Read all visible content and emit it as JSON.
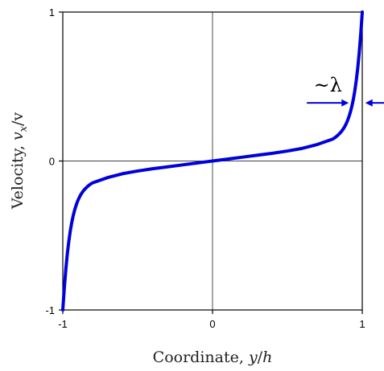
{
  "chart_data": {
    "type": "line",
    "xlabel": "Coordinate, y/h",
    "ylabel": "Velocity, vx/v",
    "xlim": [
      -1,
      1
    ],
    "ylim": [
      -1,
      1
    ],
    "x_ticks": [
      "-1",
      "0",
      "1"
    ],
    "y_ticks": [
      "-1",
      "0",
      "1"
    ],
    "grid": "zero lines only",
    "series": [
      {
        "color": "#0000dd",
        "x": [
          -1.0,
          -0.99,
          -0.98,
          -0.97,
          -0.96,
          -0.95,
          -0.94,
          -0.93,
          -0.92,
          -0.91,
          -0.9,
          -0.89,
          -0.88,
          -0.87,
          -0.86,
          -0.85,
          -0.84,
          -0.83,
          -0.82,
          -0.81,
          -0.8,
          -0.7,
          -0.6,
          -0.5,
          -0.4,
          -0.3,
          -0.2,
          -0.1,
          0.0,
          0.1,
          0.2,
          0.3,
          0.4,
          0.5,
          0.6,
          0.7,
          0.8,
          0.81,
          0.82,
          0.83,
          0.84,
          0.85,
          0.86,
          0.87,
          0.88,
          0.89,
          0.9,
          0.91,
          0.92,
          0.93,
          0.94,
          0.95,
          0.96,
          0.97,
          0.98,
          0.99,
          1.0
        ],
        "y": [
          -1.0,
          -0.855,
          -0.73,
          -0.626,
          -0.541,
          -0.47,
          -0.412,
          -0.365,
          -0.326,
          -0.294,
          -0.267,
          -0.245,
          -0.226,
          -0.211,
          -0.197,
          -0.186,
          -0.176,
          -0.167,
          -0.159,
          -0.152,
          -0.146,
          -0.111,
          -0.085,
          -0.067,
          -0.052,
          -0.039,
          -0.026,
          -0.013,
          0.0,
          0.013,
          0.026,
          0.039,
          0.052,
          0.067,
          0.085,
          0.111,
          0.146,
          0.152,
          0.159,
          0.167,
          0.176,
          0.186,
          0.197,
          0.211,
          0.226,
          0.245,
          0.267,
          0.294,
          0.326,
          0.365,
          0.412,
          0.47,
          0.541,
          0.626,
          0.73,
          0.855,
          1.0
        ]
      }
    ],
    "annotation": {
      "text": "~λ",
      "color": "#0000dd",
      "arrow_left_x": [
        0.63,
        0.91
      ],
      "arrow_right_x": [
        1.2,
        1.02
      ],
      "y": 0.39
    }
  }
}
